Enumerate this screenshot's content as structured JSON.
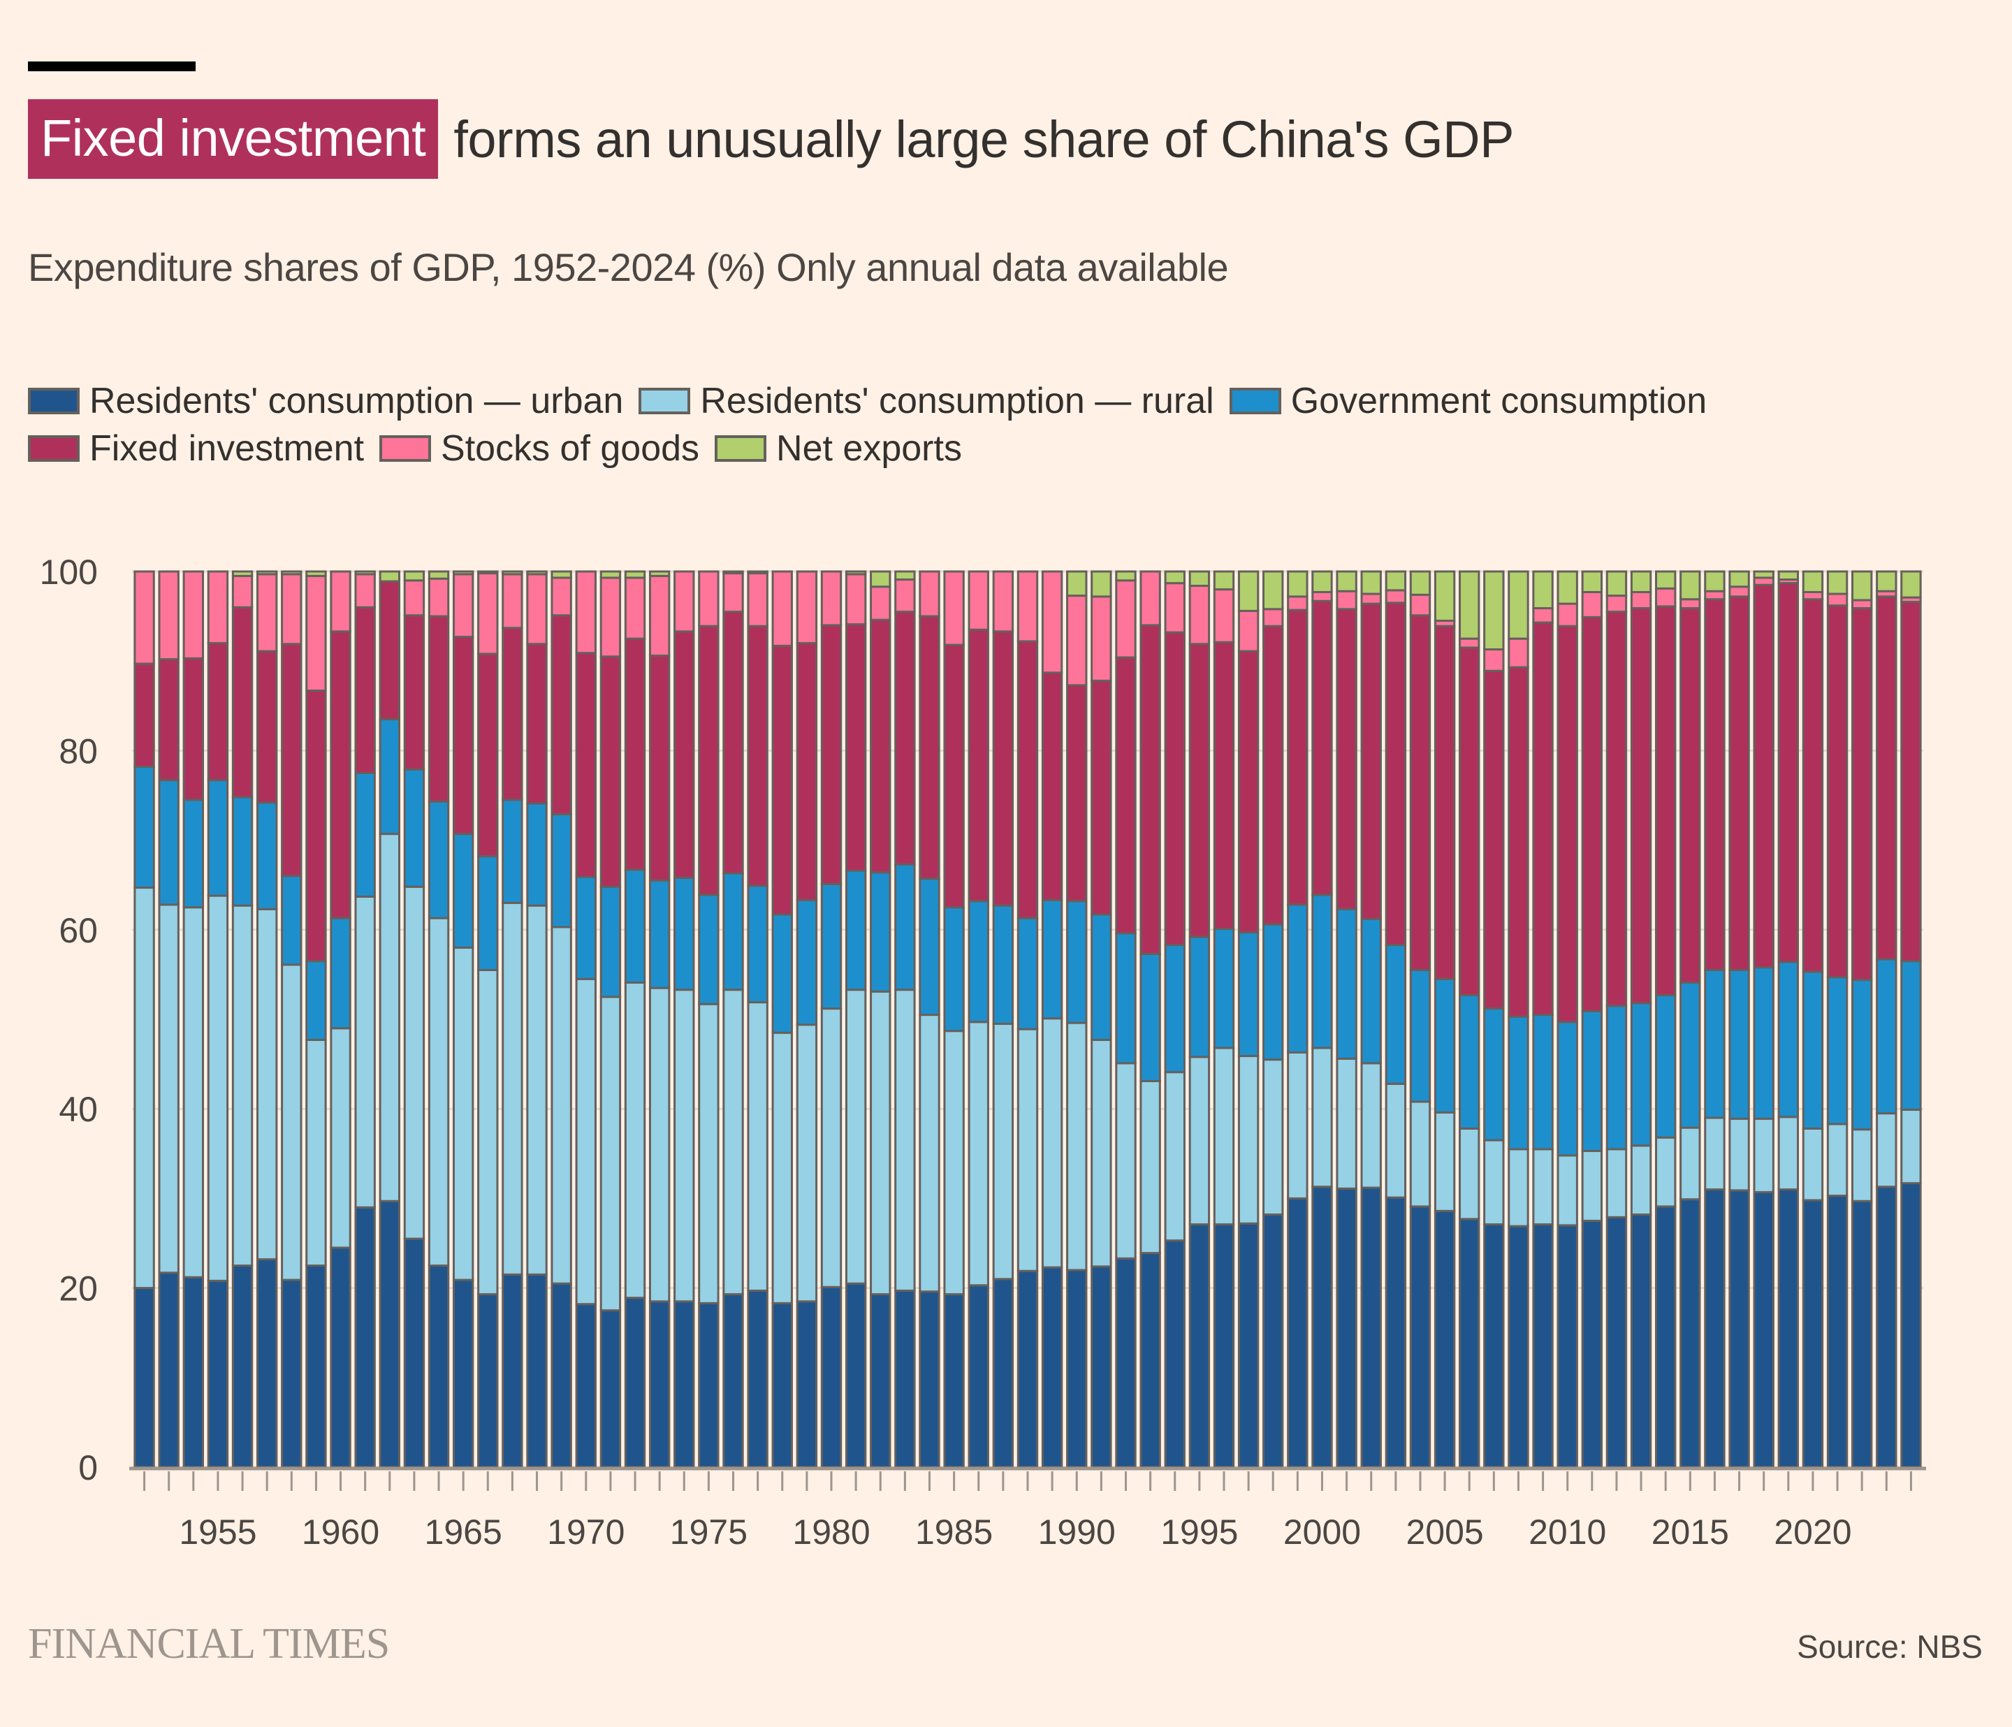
{
  "header": {
    "title_highlight": "Fixed investment",
    "title_rest": "forms an unusually large share of China's GDP",
    "subtitle": "Expenditure shares of GDP, 1952-2024 (%) Only annual data available"
  },
  "footer": {
    "brand": "FINANCIAL TIMES",
    "source": "Source: NBS"
  },
  "colors": {
    "background": "#FFF1E5",
    "highlight": "#B0305C",
    "bar_outline": "#66605C"
  },
  "chart_data": {
    "type": "bar",
    "stacked": true,
    "title": "Fixed investment forms an unusually large share of China's GDP",
    "subtitle": "Expenditure shares of GDP, 1952-2024 (%) Only annual data available",
    "xlabel": "",
    "ylabel": "",
    "ylim": [
      0,
      100
    ],
    "yticks": [
      0,
      20,
      40,
      60,
      80,
      100
    ],
    "xtick_labels": [
      "1955",
      "1960",
      "1965",
      "1970",
      "1975",
      "1980",
      "1985",
      "1990",
      "1995",
      "2000",
      "2005",
      "2010",
      "2015",
      "2020"
    ],
    "grid": true,
    "legend_position": "top-left",
    "categories": [
      1952,
      1953,
      1954,
      1955,
      1956,
      1957,
      1958,
      1959,
      1960,
      1961,
      1962,
      1963,
      1964,
      1965,
      1966,
      1967,
      1968,
      1969,
      1970,
      1971,
      1972,
      1973,
      1974,
      1975,
      1976,
      1977,
      1978,
      1979,
      1980,
      1981,
      1982,
      1983,
      1984,
      1985,
      1986,
      1987,
      1988,
      1989,
      1990,
      1991,
      1992,
      1993,
      1994,
      1995,
      1996,
      1997,
      1998,
      1999,
      2000,
      2001,
      2002,
      2003,
      2004,
      2005,
      2006,
      2007,
      2008,
      2009,
      2010,
      2011,
      2012,
      2013,
      2014,
      2015,
      2016,
      2017,
      2018,
      2019,
      2020,
      2021,
      2022,
      2023,
      2024
    ],
    "series": [
      {
        "name": "Residents' consumption — urban",
        "color": "#1F558C",
        "values": [
          20.0,
          21.7,
          21.2,
          20.8,
          22.5,
          23.2,
          20.9,
          22.5,
          24.5,
          29.0,
          29.7,
          25.5,
          22.5,
          20.9,
          19.3,
          21.5,
          21.5,
          20.5,
          18.2,
          17.5,
          18.9,
          18.5,
          18.5,
          18.3,
          19.3,
          19.7,
          18.3,
          18.5,
          20.1,
          20.5,
          19.3,
          19.7,
          19.6,
          19.3,
          20.3,
          21.0,
          21.9,
          22.3,
          22.0,
          22.4,
          23.3,
          23.9,
          25.3,
          27.1,
          27.1,
          27.2,
          28.2,
          30.0,
          31.3,
          31.1,
          31.2,
          30.1,
          29.1,
          28.6,
          27.7,
          27.1,
          26.9,
          27.1,
          27.0,
          27.5,
          27.9,
          28.2,
          29.1,
          29.9,
          31.0,
          30.9,
          30.7,
          31.0,
          29.8,
          30.3,
          29.7,
          31.3,
          31.7
        ]
      },
      {
        "name": "Residents' consumption — rural",
        "color": "#96D1E6",
        "values": [
          44.7,
          41.1,
          41.3,
          43.0,
          40.2,
          39.1,
          35.2,
          25.2,
          24.5,
          34.7,
          41.0,
          39.3,
          38.8,
          37.1,
          36.2,
          41.5,
          41.2,
          39.8,
          36.3,
          35.0,
          35.2,
          35.0,
          34.8,
          33.4,
          34.0,
          32.2,
          30.2,
          30.9,
          31.1,
          32.8,
          33.8,
          33.6,
          30.9,
          29.4,
          29.4,
          28.5,
          27.0,
          27.8,
          27.6,
          25.3,
          21.8,
          19.2,
          18.8,
          18.7,
          19.7,
          18.7,
          17.3,
          16.3,
          15.5,
          14.5,
          13.9,
          12.7,
          11.7,
          11.0,
          10.1,
          9.4,
          8.6,
          8.4,
          7.8,
          7.8,
          7.6,
          7.7,
          7.7,
          8.0,
          8.0,
          8.0,
          8.2,
          8.1,
          8.0,
          8.0,
          8.0,
          8.2,
          8.2
        ]
      },
      {
        "name": "Government consumption",
        "color": "#1E8FCD",
        "values": [
          13.5,
          13.9,
          12.0,
          12.9,
          12.1,
          11.9,
          9.9,
          8.8,
          12.3,
          13.8,
          12.8,
          13.1,
          13.0,
          12.7,
          12.7,
          11.5,
          11.4,
          12.6,
          11.4,
          12.3,
          12.6,
          12.0,
          12.5,
          12.2,
          13.0,
          13.0,
          13.2,
          13.9,
          13.9,
          13.3,
          13.3,
          14.0,
          15.2,
          13.8,
          13.5,
          13.2,
          12.4,
          13.2,
          13.6,
          14.0,
          14.5,
          14.2,
          14.2,
          13.4,
          13.3,
          13.8,
          15.1,
          16.5,
          17.1,
          16.7,
          16.1,
          15.5,
          14.7,
          14.9,
          14.9,
          14.7,
          14.8,
          15.0,
          14.9,
          15.6,
          16.0,
          15.9,
          15.9,
          16.2,
          16.5,
          16.6,
          16.9,
          17.3,
          17.5,
          16.4,
          16.7,
          17.2,
          16.6
        ]
      },
      {
        "name": "Fixed investment",
        "color": "#B0305C",
        "values": [
          11.5,
          13.5,
          15.8,
          15.3,
          21.2,
          16.9,
          25.9,
          30.2,
          32.0,
          18.5,
          15.4,
          17.2,
          20.7,
          22.0,
          22.6,
          19.2,
          17.8,
          22.2,
          25.0,
          25.7,
          25.8,
          25.1,
          27.5,
          30.0,
          29.2,
          29.0,
          30.0,
          28.7,
          28.9,
          27.5,
          28.2,
          28.2,
          29.3,
          29.3,
          30.3,
          30.6,
          30.9,
          25.4,
          24.1,
          26.1,
          30.8,
          36.7,
          34.9,
          32.7,
          32.0,
          31.4,
          33.3,
          32.9,
          32.8,
          33.5,
          35.2,
          38.2,
          39.6,
          39.4,
          38.8,
          37.7,
          39.0,
          43.8,
          44.2,
          44.0,
          44.0,
          44.1,
          43.4,
          41.8,
          41.4,
          41.7,
          42.7,
          42.3,
          41.6,
          41.5,
          41.5,
          40.5,
          40.1
        ]
      },
      {
        "name": "Stocks of goods",
        "color": "#FF7499",
        "values": [
          10.3,
          9.8,
          9.7,
          8.0,
          3.5,
          8.6,
          7.8,
          12.8,
          6.7,
          3.7,
          0.0,
          3.9,
          4.2,
          7.0,
          9.0,
          6.0,
          7.8,
          4.2,
          9.1,
          8.8,
          6.8,
          8.9,
          6.7,
          6.1,
          4.3,
          5.9,
          8.3,
          8.0,
          6.0,
          5.6,
          3.7,
          3.6,
          5.0,
          8.2,
          6.5,
          6.7,
          7.8,
          11.3,
          10.0,
          9.4,
          8.6,
          6.0,
          5.5,
          6.5,
          5.9,
          4.5,
          1.9,
          1.5,
          1.0,
          2.0,
          1.1,
          1.4,
          2.3,
          0.6,
          1.0,
          2.4,
          3.2,
          1.6,
          2.5,
          2.8,
          1.8,
          1.8,
          2.0,
          1.0,
          0.9,
          1.1,
          0.8,
          0.4,
          0.8,
          1.3,
          0.9,
          0.6,
          0.5
        ]
      },
      {
        "name": "Net exports",
        "color": "#B1CF6D",
        "values": [
          0.0,
          0.0,
          0.0,
          0.0,
          0.5,
          0.3,
          0.3,
          0.5,
          0.0,
          0.3,
          1.1,
          1.0,
          0.8,
          0.3,
          0.2,
          0.3,
          0.3,
          0.7,
          0.0,
          0.7,
          0.7,
          0.5,
          0.0,
          0.0,
          0.2,
          0.2,
          0.0,
          0.0,
          0.0,
          0.3,
          1.7,
          0.9,
          0.0,
          0.0,
          0.0,
          0.0,
          0.0,
          0.0,
          2.7,
          2.8,
          1.0,
          0.0,
          1.3,
          1.6,
          2.0,
          4.4,
          4.2,
          2.8,
          2.3,
          2.2,
          2.5,
          2.1,
          2.6,
          5.5,
          7.5,
          8.7,
          7.5,
          4.1,
          3.6,
          2.3,
          2.7,
          2.3,
          1.9,
          3.1,
          2.2,
          1.7,
          0.7,
          0.9,
          2.3,
          2.5,
          3.2,
          2.2,
          2.9
        ]
      }
    ]
  }
}
